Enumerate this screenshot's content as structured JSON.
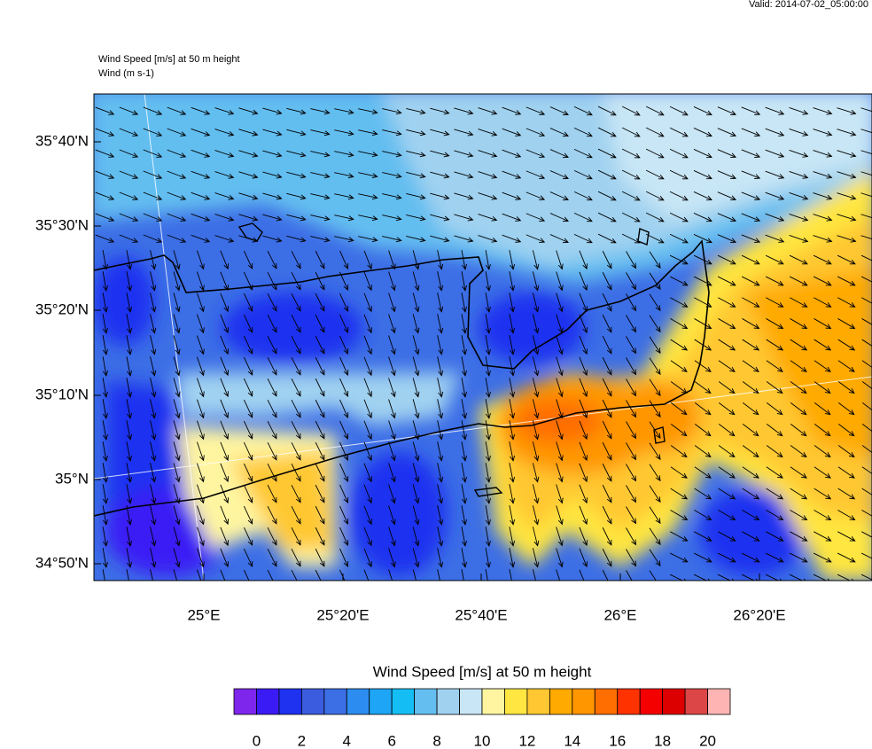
{
  "header": {
    "valid": "Valid: 2014-07-02_05:00:00",
    "title": "Wind Speed [m/s] at 50 m height",
    "subtitle": "Wind   (m s-1)"
  },
  "map": {
    "lat_labels": [
      "35°40'N",
      "35°30'N",
      "35°20'N",
      "35°10'N",
      "35°N",
      "34°50'N"
    ],
    "lon_labels": [
      "25°E",
      "25°20'E",
      "25°40'E",
      "26°E",
      "26°20'E"
    ]
  },
  "colorbar": {
    "title": "Wind Speed [m/s] at 50 m height",
    "ticks": [
      0,
      2,
      4,
      6,
      8,
      10,
      12,
      14,
      16,
      18,
      20
    ],
    "colors": [
      "#7f26ec",
      "#3b1bf5",
      "#1e32f0",
      "#3c5ce0",
      "#3c6ee6",
      "#2d8cf0",
      "#1ea5f5",
      "#14bef5",
      "#64bef0",
      "#a0d2f0",
      "#c8e6f5",
      "#fff5a0",
      "#ffe641",
      "#ffc832",
      "#ffaa00",
      "#ff9600",
      "#ff6e00",
      "#ff3200",
      "#f50000",
      "#dc0000",
      "#dc4646",
      "#ffb4b4"
    ]
  }
}
